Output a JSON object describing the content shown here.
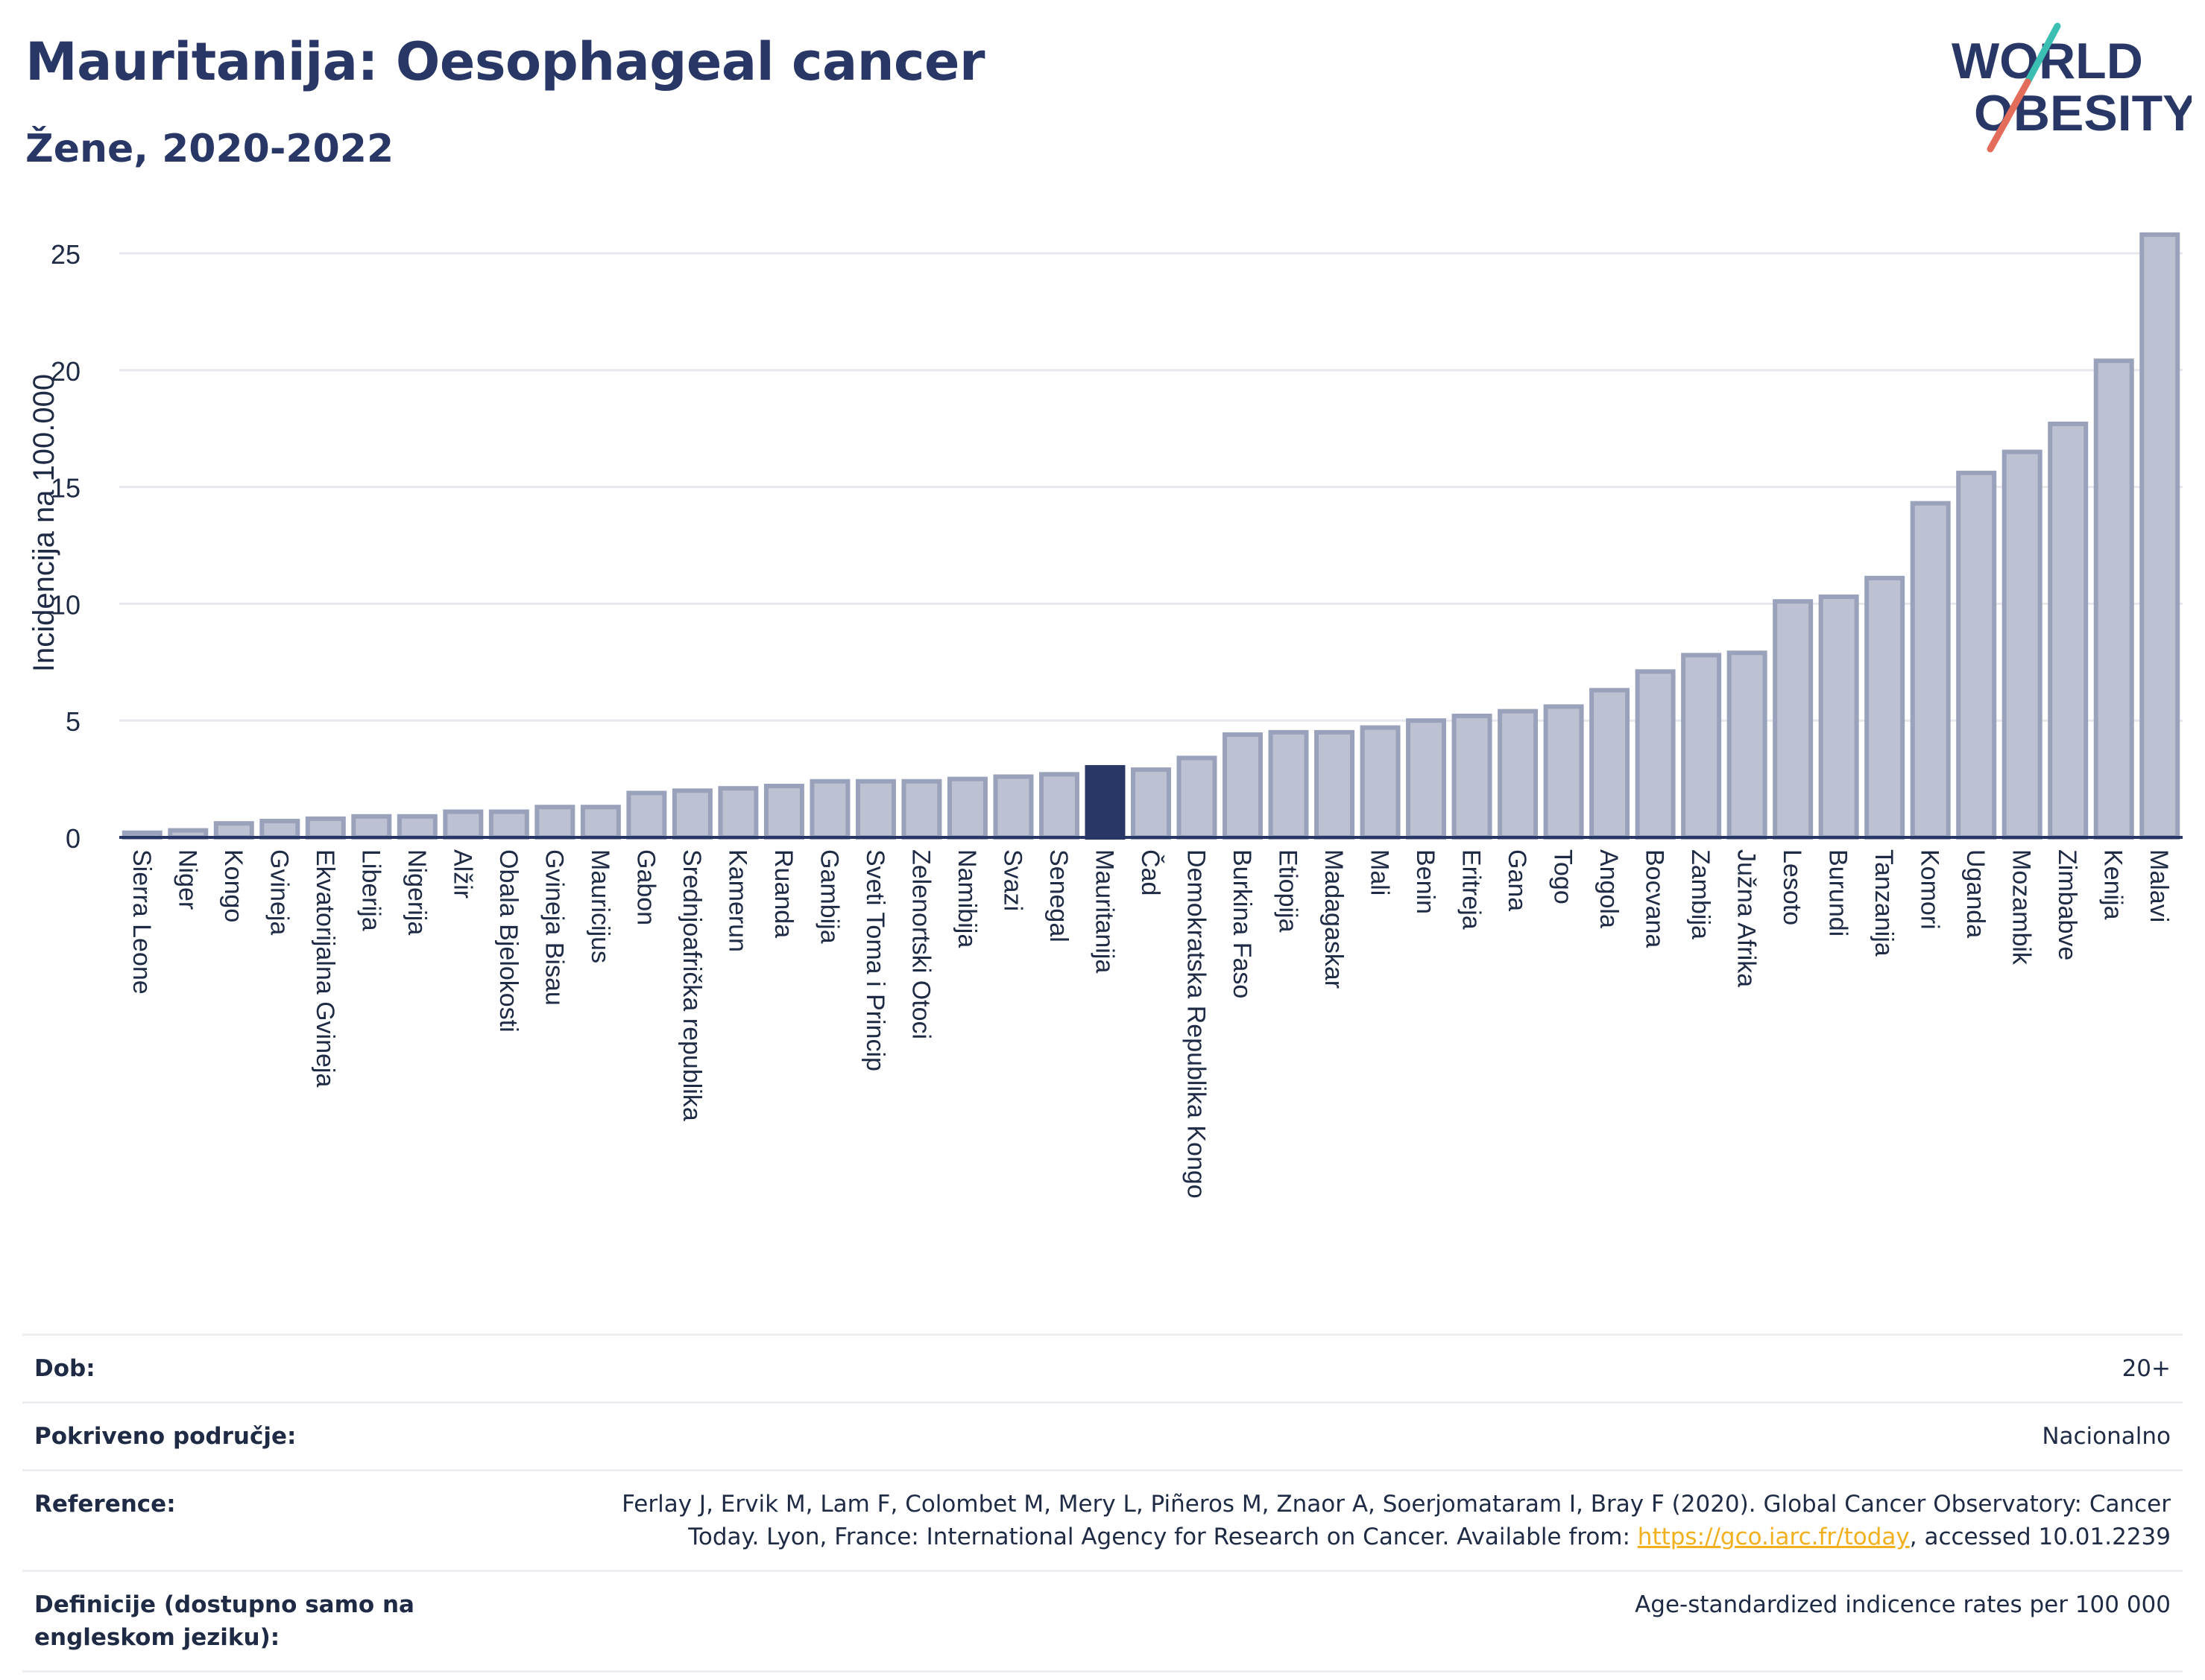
{
  "header": {
    "title": "Mauritanija: Oesophageal cancer",
    "subtitle": "Žene, 2020-2022"
  },
  "logo": {
    "line1": "WORLD",
    "line2": "OBESITY"
  },
  "colors": {
    "bar": "#bcc2d2",
    "bar_border": "#9aa1bb",
    "highlight": "#283765",
    "grid": "#e6e8ee",
    "title": "#283765"
  },
  "chart_data": {
    "type": "bar",
    "title": "Mauritanija: Oesophageal cancer",
    "subtitle": "Žene, 2020-2022",
    "xlabel": "",
    "ylabel": "Incidencija na 100.000",
    "ylim": [
      0,
      26.5
    ],
    "yticks": [
      0,
      5,
      10,
      15,
      20,
      25
    ],
    "grid": true,
    "highlight": "Mauritanija",
    "categories": [
      "Sierra Leone",
      "Niger",
      "Kongo",
      "Gvineja",
      "Ekvatorijalna Gvineja",
      "Liberija",
      "Nigerija",
      "Alžir",
      "Obala Bjelokosti",
      "Gvineja Bisau",
      "Mauricijus",
      "Gabon",
      "Srednjoafrička republika",
      "Kamerun",
      "Ruanda",
      "Gambija",
      "Sveti Toma i Princip",
      "Zelenortski Otoci",
      "Namibija",
      "Svazi",
      "Senegal",
      "Mauritanija",
      "Čad",
      "Demokratska Republika Kongo",
      "Burkina Faso",
      "Etiopija",
      "Madagaskar",
      "Mali",
      "Benin",
      "Eritreja",
      "Gana",
      "Togo",
      "Angola",
      "Bocvana",
      "Zambija",
      "Južna Afrika",
      "Lesoto",
      "Burundi",
      "Tanzanija",
      "Komori",
      "Uganda",
      "Mozambik",
      "Zimbabve",
      "Kenija",
      "Malavi"
    ],
    "values": [
      0.2,
      0.3,
      0.6,
      0.7,
      0.8,
      0.9,
      0.9,
      1.1,
      1.1,
      1.3,
      1.3,
      1.9,
      2.0,
      2.1,
      2.2,
      2.4,
      2.4,
      2.4,
      2.5,
      2.6,
      2.7,
      3.0,
      2.9,
      3.4,
      4.4,
      4.5,
      4.5,
      4.7,
      5.0,
      5.2,
      5.4,
      5.6,
      6.3,
      7.1,
      7.8,
      7.9,
      10.1,
      10.3,
      11.1,
      14.3,
      15.6,
      16.5,
      17.7,
      20.4,
      25.8
    ]
  },
  "meta": {
    "rows": [
      {
        "label": "Dob:",
        "value": "20+"
      },
      {
        "label": "Pokriveno područje:",
        "value": "Nacionalno"
      },
      {
        "label": "Reference:",
        "value_before": "Ferlay J, Ervik M, Lam F, Colombet M, Mery L, Piñeros M, Znaor A, Soerjomataram I, Bray F (2020). Global Cancer Observatory: Cancer Today. Lyon, France: International Agency for Research on Cancer. Available from: ",
        "link": "https://gco.iarc.fr/today",
        "value_after": ", accessed 10.01.2239"
      },
      {
        "label": "Definicije (dostupno samo na engleskom jeziku):",
        "value": "Age-standardized indicence rates per 100 000"
      }
    ]
  }
}
